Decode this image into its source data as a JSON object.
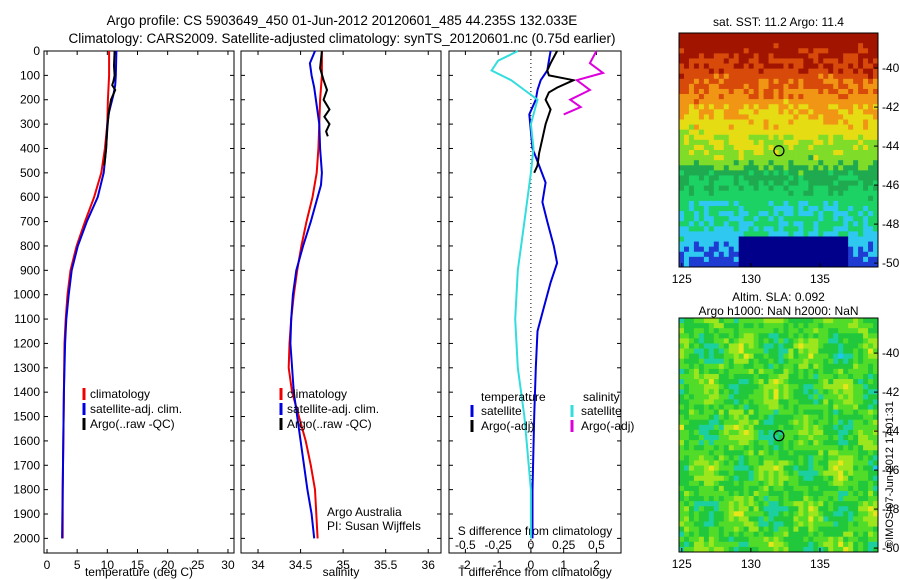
{
  "figure": {
    "title_line1": "Argo profile: CS 5903649_450 01-Jun-2012 20120601_485 44.235S 132.033E",
    "title_line2": "Climatology: CARS2009. Satellite-adjusted climatology: synTS_20120601.nc (0.75d earlier)",
    "vertical_footer": "©IMOS 07-Jun-2012 17:01:31",
    "colors": {
      "climatology": "#ee0000",
      "satellite": "#0000dd",
      "argo": "#000000",
      "satellite_salinity": "#33dddd",
      "argo_salinity": "#dd00dd"
    }
  },
  "chart_data": [
    {
      "id": "temperature",
      "type": "line",
      "xlabel": "temperature (deg C)",
      "ylabel": "",
      "xlim": [
        -0.5,
        31
      ],
      "ylim": [
        2060,
        0
      ],
      "xticks": [
        0,
        5,
        10,
        15,
        20,
        25,
        30
      ],
      "yticks": [
        0,
        100,
        200,
        300,
        400,
        500,
        600,
        700,
        800,
        900,
        1000,
        1100,
        1200,
        1300,
        1400,
        1500,
        1600,
        1700,
        1800,
        1900,
        2000
      ],
      "legend": [
        "climatology",
        "satellite-adj. clim.",
        "Argo(..raw -QC)"
      ],
      "series": [
        {
          "name": "climatology",
          "color": "#ee0000",
          "x": [
            10.3,
            10.3,
            10.2,
            10.1,
            10.0,
            9.6,
            9.0,
            7.8,
            6.3,
            4.9,
            3.9,
            3.4,
            3.1,
            2.9,
            2.8,
            2.7,
            2.6,
            2.6
          ],
          "y": [
            0,
            100,
            150,
            200,
            300,
            400,
            500,
            600,
            700,
            800,
            900,
            1000,
            1100,
            1200,
            1400,
            1600,
            1800,
            2000
          ]
        },
        {
          "name": "satellite-adj. clim.",
          "color": "#0000dd",
          "x": [
            11.5,
            11.4,
            11.3,
            11.0,
            10.3,
            10.0,
            9.8,
            9.4,
            8.4,
            6.6,
            5.1,
            4.1,
            3.6,
            3.2,
            3.0,
            2.8,
            2.7,
            2.6,
            2.5
          ],
          "y": [
            0,
            100,
            140,
            180,
            250,
            300,
            400,
            500,
            600,
            700,
            800,
            900,
            1000,
            1100,
            1200,
            1400,
            1600,
            1800,
            2000
          ]
        },
        {
          "name": "Argo(..raw -QC)",
          "color": "#000000",
          "x": [
            11.2,
            11.1,
            11.2,
            11.0,
            10.8,
            11.3,
            10.6,
            10.2,
            10.0,
            9.8,
            9.5
          ],
          "y": [
            0,
            60,
            100,
            125,
            140,
            160,
            200,
            260,
            320,
            400,
            470
          ]
        }
      ]
    },
    {
      "id": "salinity",
      "type": "line",
      "xlabel": "salinity",
      "ylabel": "",
      "xlim": [
        33.8,
        36.15
      ],
      "ylim": [
        2060,
        0
      ],
      "xticks": [
        34,
        34.5,
        35,
        35.5,
        36
      ],
      "yticks": [
        0,
        100,
        200,
        300,
        400,
        500,
        600,
        700,
        800,
        900,
        1000,
        1100,
        1200,
        1300,
        1400,
        1500,
        1600,
        1700,
        1800,
        1900,
        2000
      ],
      "legend": [
        "climatology",
        "satellite-adj. clim.",
        "Argo(..raw -QC)"
      ],
      "annotation": [
        "Argo Australia",
        "PI: Susan Wijffels"
      ],
      "series": [
        {
          "name": "climatology",
          "color": "#ee0000",
          "x": [
            34.75,
            34.75,
            34.73,
            34.72,
            34.71,
            34.69,
            34.64,
            34.57,
            34.51,
            34.46,
            34.42,
            34.39,
            34.37,
            34.36,
            34.4,
            34.48,
            34.56,
            34.62,
            34.67,
            34.7
          ],
          "y": [
            0,
            100,
            200,
            300,
            400,
            500,
            600,
            700,
            800,
            900,
            1000,
            1100,
            1200,
            1300,
            1400,
            1500,
            1600,
            1700,
            1800,
            2000
          ]
        },
        {
          "name": "satellite-adj. clim.",
          "color": "#0000dd",
          "x": [
            34.67,
            34.61,
            34.63,
            34.66,
            34.68,
            34.72,
            34.73,
            34.75,
            34.74,
            34.7,
            34.62,
            34.53,
            34.45,
            34.41,
            34.39,
            34.38,
            34.42,
            34.5,
            34.58,
            34.63,
            34.66
          ],
          "y": [
            0,
            50,
            100,
            150,
            200,
            300,
            400,
            500,
            550,
            600,
            700,
            800,
            900,
            1000,
            1100,
            1200,
            1400,
            1600,
            1800,
            1900,
            2000
          ]
        },
        {
          "name": "Argo(..raw -QC)",
          "color": "#000000",
          "x": [
            34.75,
            34.73,
            34.77,
            34.81,
            34.77,
            34.84,
            34.78,
            34.84,
            34.8,
            34.82
          ],
          "y": [
            0,
            70,
            120,
            160,
            200,
            240,
            270,
            300,
            330,
            350
          ]
        }
      ]
    },
    {
      "id": "difference",
      "type": "line",
      "xlabel": "T difference from climatology",
      "xlabel2": "S difference from climatology",
      "ylabel": "",
      "xlim": [
        -2.5,
        2.75
      ],
      "ylim": [
        2060,
        0
      ],
      "xticks": [
        -2,
        -1,
        0,
        1,
        2
      ],
      "xticks2": [
        -0.5,
        -0.25,
        0,
        0.25,
        0.5
      ],
      "yticks": [
        0,
        100,
        200,
        300,
        400,
        500,
        600,
        700,
        800,
        900,
        1000,
        1100,
        1200,
        1300,
        1400,
        1500,
        1600,
        1700,
        1800,
        1900,
        2000
      ],
      "legend_temperature_heading": "temperature",
      "legend_salinity_heading": "salinity",
      "legend_temperature": [
        "satellite",
        "Argo(-adj)"
      ],
      "legend_salinity": [
        "satellite",
        "Argo(-adj)"
      ],
      "series": [
        {
          "name": "T satellite",
          "color": "#0000dd",
          "x": [
            0.6,
            0.55,
            0.5,
            0.3,
            0.2,
            0.15,
            -0.05,
            0.0,
            0.05,
            0.25,
            0.45,
            0.35,
            0.5,
            0.7,
            0.8,
            0.6,
            0.4,
            0.2,
            0.15,
            0.1,
            0.05,
            0.05
          ],
          "y": [
            0,
            40,
            80,
            120,
            160,
            200,
            260,
            330,
            400,
            470,
            540,
            620,
            700,
            800,
            870,
            950,
            1050,
            1150,
            1300,
            1500,
            1800,
            2000
          ]
        },
        {
          "name": "T Argo(-adj)",
          "color": "#000000",
          "x": [
            0.8,
            0.6,
            0.5,
            0.55,
            1.3,
            0.8,
            0.55,
            0.45,
            0.6,
            0.45,
            0.35,
            0.25,
            0.2,
            0.1
          ],
          "y": [
            0,
            50,
            80,
            100,
            120,
            150,
            170,
            200,
            240,
            300,
            360,
            420,
            470,
            500
          ]
        },
        {
          "name": "S satellite",
          "color": "#33dddd",
          "x": [
            -0.1,
            -0.25,
            -0.3,
            -0.15,
            -0.05,
            0.05,
            0.0,
            0.02,
            0.0,
            -0.05,
            -0.1,
            -0.12,
            -0.1,
            -0.05,
            0.0,
            0.0
          ],
          "y": [
            0,
            40,
            80,
            120,
            160,
            200,
            300,
            400,
            500,
            700,
            900,
            1100,
            1300,
            1500,
            1800,
            2000
          ]
        },
        {
          "name": "S Argo(-adj)",
          "color": "#dd00dd",
          "x": [
            0.5,
            0.45,
            0.55,
            0.35,
            0.45,
            0.3,
            0.38,
            0.25
          ],
          "y": [
            0,
            50,
            90,
            120,
            160,
            200,
            230,
            260
          ]
        }
      ]
    },
    {
      "id": "sst_map",
      "type": "heatmap",
      "title": "sat. SST: 11.2 Argo: 11.4",
      "xlim": [
        124.8,
        139.2
      ],
      "ylim": [
        -50.2,
        -38.2
      ],
      "xticks": [
        125,
        130,
        135
      ],
      "yticks": [
        -40,
        -42,
        -44,
        -46,
        -48,
        -50
      ],
      "marker": {
        "lon": 132.03,
        "lat": -44.24
      },
      "palette": [
        "#00008a",
        "#1e3cd2",
        "#2ec8f0",
        "#1cd264",
        "#1faa50",
        "#7fdc28",
        "#e6dc14",
        "#f09614",
        "#d84a0a",
        "#a01400"
      ]
    },
    {
      "id": "sla_map",
      "type": "heatmap",
      "title": "Altim. SLA: 0.092",
      "subtitle": "Argo h1000: NaN h2000: NaN",
      "xlim": [
        124.8,
        139.2
      ],
      "ylim": [
        -50.2,
        -38.2
      ],
      "xticks": [
        125,
        130,
        135
      ],
      "yticks": [
        -40,
        -42,
        -44,
        -46,
        -48,
        -50
      ],
      "marker": {
        "lon": 132.03,
        "lat": -44.24
      },
      "palette": [
        "#1ec8f0",
        "#1ccfa0",
        "#22c83c",
        "#50dc28",
        "#9ce61e",
        "#e6e61a"
      ]
    }
  ]
}
